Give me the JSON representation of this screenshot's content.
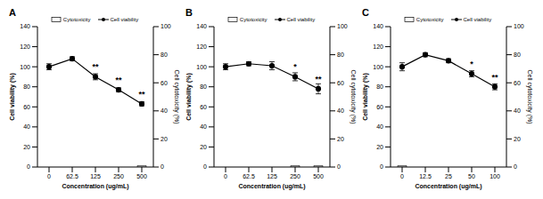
{
  "chart_data": [
    {
      "type": "line",
      "title": "A",
      "x_label": "Concentration (ug/mL)",
      "y_label": "Cell viability (%)",
      "y2_label": "Cell cytotoxicity (%)",
      "categories": [
        "0",
        "62.5",
        "125",
        "250",
        "500"
      ],
      "ylim": [
        0,
        140
      ],
      "yticks": [
        0,
        20,
        40,
        60,
        80,
        100,
        120,
        140
      ],
      "y2lim": [
        0,
        100
      ],
      "y2ticks": [
        0,
        20,
        40,
        60,
        80,
        100
      ],
      "legend": "top",
      "series": [
        {
          "name": "Cytotoxicity",
          "type": "bar",
          "axis": "y2",
          "color": "#ffffff",
          "values": [
            0,
            0,
            0,
            0,
            1
          ]
        },
        {
          "name": "Cell viability",
          "type": "line",
          "color": "#000000",
          "marker": "circle",
          "line_style": "solid",
          "values": [
            100,
            108,
            90,
            77,
            63
          ],
          "errors": [
            3,
            2,
            3,
            2,
            2
          ],
          "annotations": [
            null,
            null,
            "**",
            "**",
            "**"
          ]
        }
      ]
    },
    {
      "type": "line",
      "title": "B",
      "x_label": "Concentration (ug/mL)",
      "y_label": "Cell viability (%)",
      "y2_label": "Cell cytotoxicity (%)",
      "categories": [
        "0",
        "62.5",
        "125",
        "250",
        "500"
      ],
      "ylim": [
        0,
        140
      ],
      "yticks": [
        0,
        20,
        40,
        60,
        80,
        100,
        120,
        140
      ],
      "y2lim": [
        0,
        100
      ],
      "y2ticks": [
        0,
        20,
        40,
        60,
        80,
        100
      ],
      "legend": "top",
      "series": [
        {
          "name": "Cytotoxicity",
          "type": "bar",
          "axis": "y2",
          "color": "#ffffff",
          "values": [
            0,
            0,
            0,
            1,
            1
          ]
        },
        {
          "name": "Cell viability",
          "type": "line",
          "color": "#000000",
          "marker": "circle",
          "line_style": "solid",
          "values": [
            100,
            103,
            101,
            90,
            78
          ],
          "errors": [
            3,
            2,
            4,
            4,
            5
          ],
          "annotations": [
            null,
            null,
            null,
            "*",
            "**"
          ]
        }
      ]
    },
    {
      "type": "line",
      "title": "C",
      "x_label": "Concentration (ug/mL)",
      "y_label": "Cell viability (%)",
      "y2_label": "Cell cytotoxicity (%)",
      "categories": [
        "0",
        "12.5",
        "25",
        "50",
        "100"
      ],
      "ylim": [
        0,
        140
      ],
      "yticks": [
        0,
        20,
        40,
        60,
        80,
        100,
        120,
        140
      ],
      "y2lim": [
        0,
        100
      ],
      "y2ticks": [
        0,
        20,
        40,
        60,
        80,
        100
      ],
      "legend": "top",
      "series": [
        {
          "name": "Cytotoxicity",
          "type": "bar",
          "axis": "y2",
          "color": "#ffffff",
          "values": [
            1,
            0,
            0,
            0,
            0
          ]
        },
        {
          "name": "Cell viability",
          "type": "line",
          "color": "#000000",
          "marker": "circle",
          "line_style": "solid",
          "values": [
            100,
            112,
            106,
            93,
            80
          ],
          "errors": [
            4,
            2,
            2,
            3,
            3
          ],
          "annotations": [
            null,
            null,
            null,
            "*",
            "**"
          ]
        }
      ]
    }
  ]
}
